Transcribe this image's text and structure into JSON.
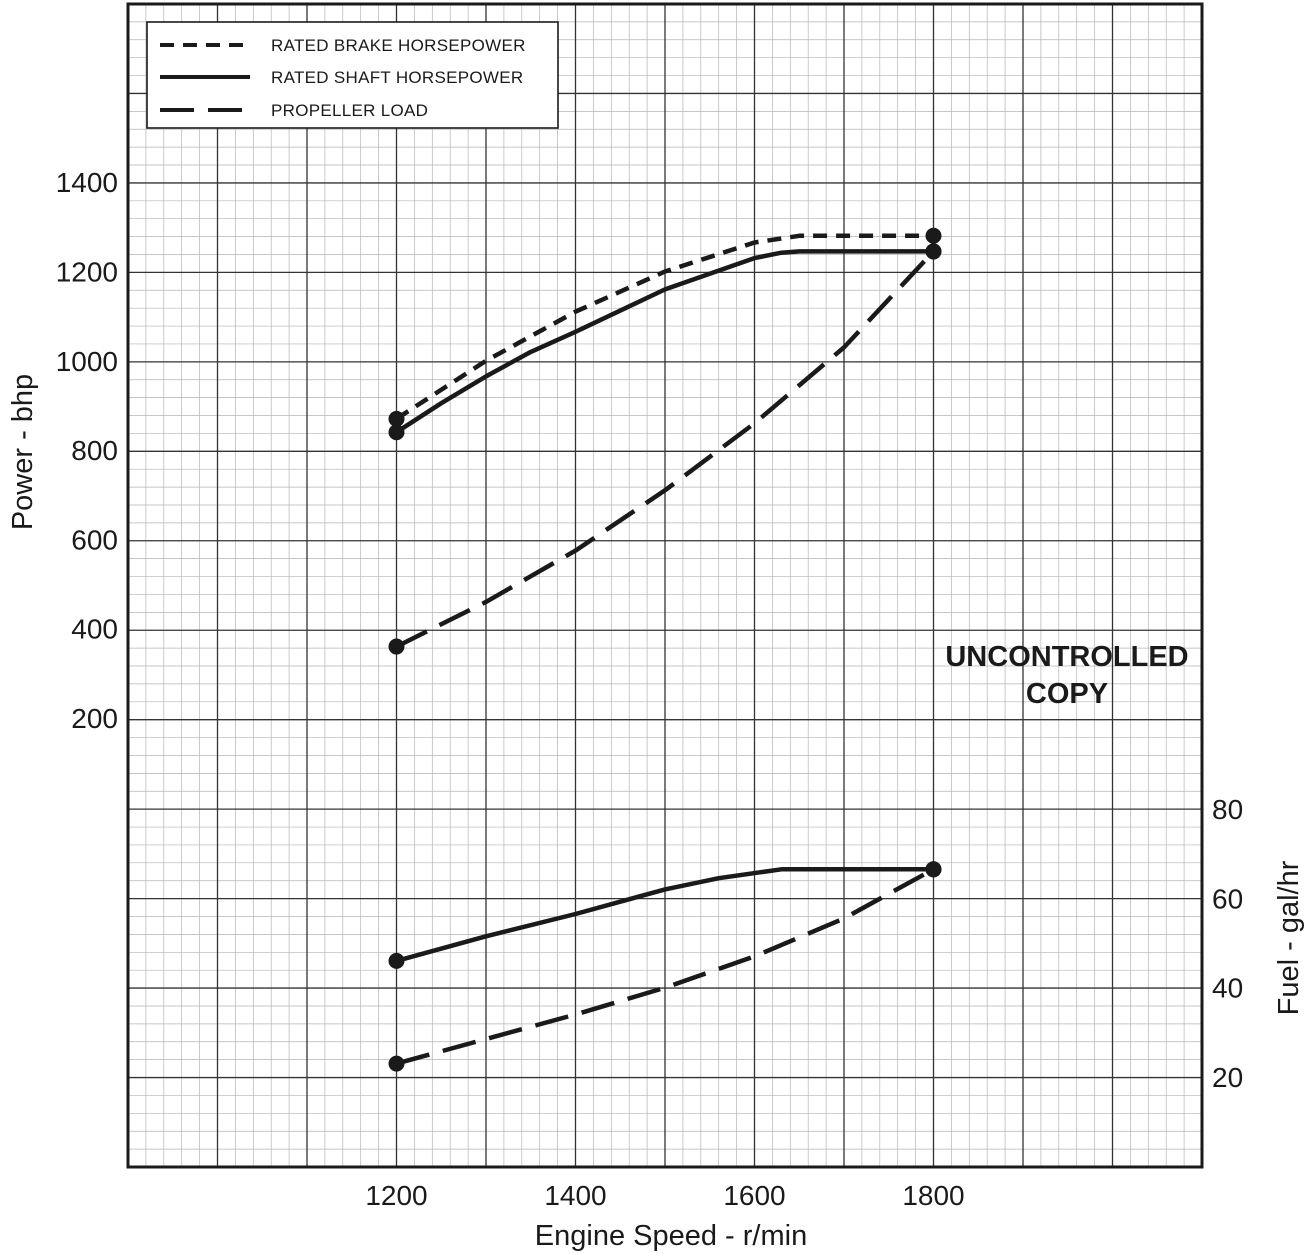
{
  "chart_data": {
    "type": "line",
    "xlabel": "Engine Speed - r/min",
    "ylabel_left": "Power - bhp",
    "ylabel_right": "Fuel - gal/hr",
    "xlim": [
      900,
      2100
    ],
    "x_ticks": [
      1200,
      1400,
      1600,
      1800
    ],
    "power_axis": {
      "ticks": [
        200,
        400,
        600,
        800,
        1000,
        1200,
        1400
      ]
    },
    "fuel_axis": {
      "ticks": [
        20,
        40,
        60,
        80
      ]
    },
    "grid": true,
    "legend": {
      "placement": "top-left",
      "entries": [
        {
          "label": "RATED BRAKE HORSEPOWER",
          "style": "short-dash"
        },
        {
          "label": "RATED SHAFT HORSEPOWER",
          "style": "solid"
        },
        {
          "label": "PROPELLER LOAD",
          "style": "long-dash"
        }
      ]
    },
    "series": [
      {
        "name": "RATED BRAKE HORSEPOWER",
        "axis": "power",
        "style": "short-dash",
        "x": [
          1200,
          1300,
          1400,
          1500,
          1600,
          1650,
          1700,
          1800
        ],
        "y": [
          870,
          1000,
          1110,
          1200,
          1265,
          1280,
          1280,
          1280
        ],
        "markers": [
          0,
          7
        ]
      },
      {
        "name": "RATED SHAFT HORSEPOWER",
        "axis": "power",
        "style": "solid",
        "x": [
          1200,
          1250,
          1300,
          1350,
          1400,
          1500,
          1600,
          1630,
          1650,
          1700,
          1800
        ],
        "y": [
          840,
          905,
          965,
          1020,
          1065,
          1160,
          1230,
          1242,
          1245,
          1245,
          1245
        ],
        "markers": [
          0,
          10
        ]
      },
      {
        "name": "PROPELLER LOAD",
        "axis": "power",
        "style": "long-dash",
        "x": [
          1200,
          1300,
          1400,
          1500,
          1600,
          1700,
          1800
        ],
        "y": [
          360,
          460,
          575,
          710,
          860,
          1030,
          1245
        ],
        "markers": [
          0,
          6
        ]
      },
      {
        "name": "RATED SHAFT HORSEPOWER",
        "axis": "fuel",
        "style": "solid",
        "x": [
          1200,
          1300,
          1400,
          1500,
          1560,
          1630,
          1700,
          1800
        ],
        "y": [
          46,
          51.5,
          56.5,
          62,
          64.5,
          66.5,
          66.5,
          66.5
        ],
        "markers": [
          0,
          7
        ]
      },
      {
        "name": "PROPELLER LOAD",
        "axis": "fuel",
        "style": "long-dash",
        "x": [
          1200,
          1300,
          1400,
          1500,
          1600,
          1700,
          1800
        ],
        "y": [
          23,
          28.5,
          34,
          40,
          47,
          55.5,
          66.5
        ],
        "markers": [
          0,
          6
        ]
      }
    ]
  },
  "stamp": {
    "line1": "UNCONTROLLED",
    "line2": "COPY"
  },
  "colors": {
    "ink": "#1a1a1a",
    "minor_grid": "#b4b4b4",
    "major_grid": "#333333"
  }
}
